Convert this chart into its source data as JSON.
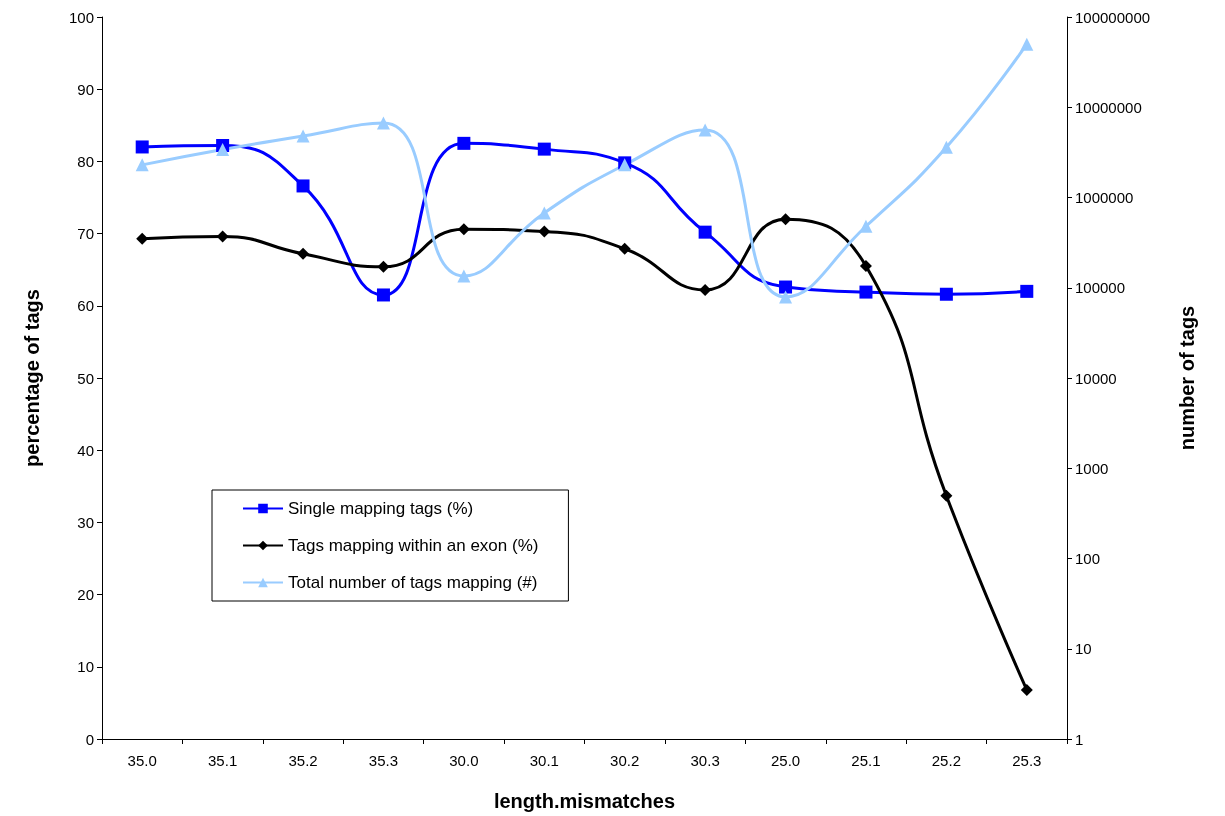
{
  "chart_data": {
    "type": "line",
    "xlabel": "length.mismatches",
    "ylabel": "percentage of tags",
    "y2label": "number of tags",
    "categories": [
      "35.0",
      "35.1",
      "35.2",
      "35.3",
      "30.0",
      "30.1",
      "30.2",
      "30.3",
      "25.0",
      "25.1",
      "25.2",
      "25.3"
    ],
    "series": [
      {
        "name": "Single mapping tags (%)",
        "color": "#0000ff",
        "marker": "square",
        "values": [
          82.0,
          82.2,
          76.6,
          61.5,
          82.5,
          81.7,
          79.8,
          70.2,
          62.6,
          61.9,
          61.6,
          62.0
        ]
      },
      {
        "name": "Tags mapping within an exon (%)",
        "color": "#000000",
        "marker": "diamond",
        "values": [
          69.3,
          69.6,
          67.2,
          65.4,
          70.6,
          70.3,
          67.9,
          62.2,
          72.0,
          65.5,
          33.7,
          6.8
        ]
      },
      {
        "name": "Total number of tags mapping (#)",
        "color": "#99ccff",
        "marker": "triangle",
        "axis": "y2",
        "values": [
          2300000,
          3400000,
          4800000,
          6700000,
          135000,
          675000,
          2300000,
          5600000,
          79000,
          480000,
          3600000,
          50000000
        ]
      }
    ],
    "ylim": [
      0,
      100
    ],
    "yticks": [
      0,
      10,
      20,
      30,
      40,
      50,
      60,
      70,
      80,
      90,
      100
    ],
    "y2lim": [
      1,
      100000000
    ],
    "y2ticks": [
      1,
      10,
      100,
      1000,
      10000,
      100000,
      1000000,
      10000000,
      100000000
    ],
    "log": "y2",
    "grid": false,
    "legend": "bottom left"
  }
}
